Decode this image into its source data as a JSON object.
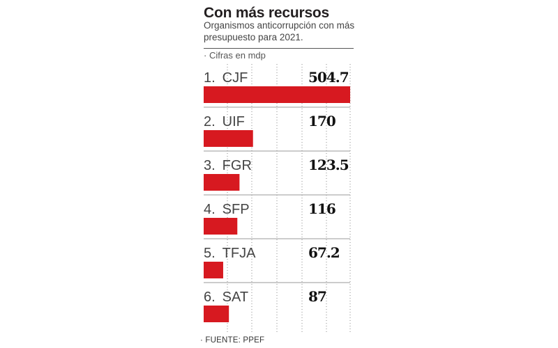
{
  "chart_data": {
    "type": "bar",
    "orientation": "horizontal",
    "title": "Con más recursos",
    "subtitle": "Organismos anticorrupción con más presupuesto para 2021.",
    "units_note": "· Cifras en mdp",
    "source": "· FUENTE: PPEF",
    "categories": [
      "CJF",
      "UIF",
      "FGR",
      "SFP",
      "TFJA",
      "SAT"
    ],
    "ranks": [
      "1.",
      "2.",
      "3.",
      "4.",
      "5.",
      "6."
    ],
    "values": [
      504.7,
      170,
      123.5,
      116,
      67.2,
      87
    ],
    "value_labels": [
      "504.7",
      "170",
      "123.5",
      "116",
      "67.2",
      "87"
    ],
    "xlim": [
      0,
      504.7
    ],
    "grid": true,
    "bar_color": "#d71920"
  }
}
